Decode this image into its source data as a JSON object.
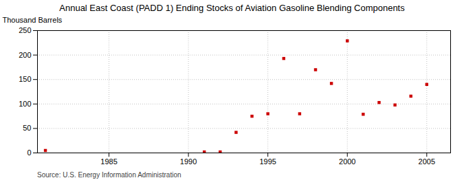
{
  "chart_data": {
    "type": "scatter",
    "title": "Annual East Coast (PADD 1) Ending Stocks of Aviation Gasoline Blending Components",
    "y_label": "Thousand Barrels",
    "source": "Source: U.S. Energy Information Administration",
    "x": [
      1981,
      1991,
      1992,
      1993,
      1994,
      1995,
      1996,
      1997,
      1998,
      1999,
      2000,
      2001,
      2002,
      2003,
      2004,
      2005
    ],
    "values": [
      5,
      2,
      2,
      42,
      75,
      80,
      193,
      80,
      170,
      142,
      229,
      79,
      103,
      98,
      116,
      140
    ],
    "color": "#cc0000",
    "marker": "square",
    "xlim": [
      1980.5,
      2006.5
    ],
    "xticks": [
      1985,
      1990,
      1995,
      2000,
      2005
    ],
    "ylim": [
      0,
      250
    ],
    "yticks": [
      0,
      50,
      100,
      150,
      200,
      250
    ],
    "grid": true
  }
}
